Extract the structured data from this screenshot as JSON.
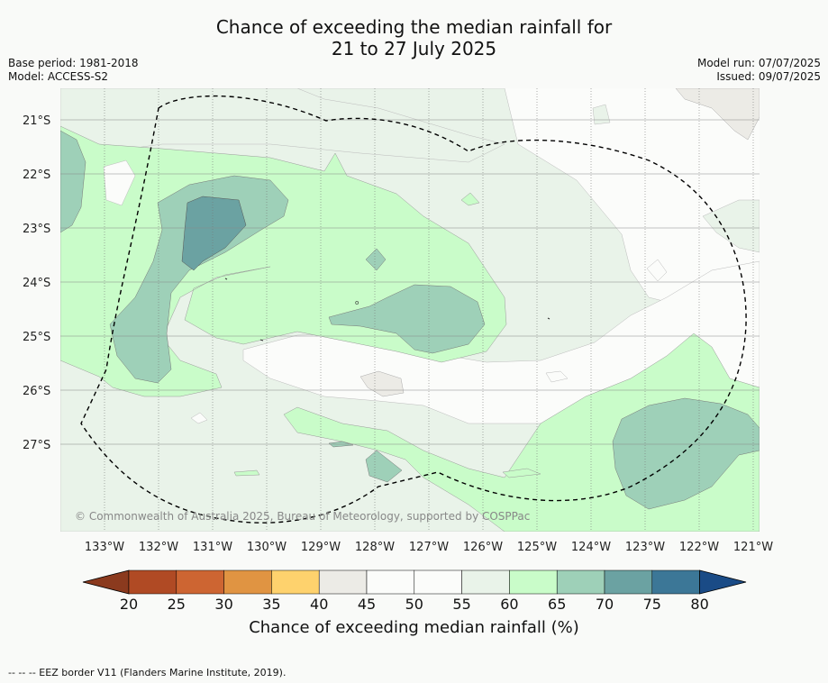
{
  "title_line1": "Chance of exceeding the median rainfall for",
  "title_line2": "21 to 27 July 2025",
  "base_period": "Base period: 1981-2018",
  "model": "Model: ACCESS-S2",
  "model_run": "Model run: 07/07/2025",
  "issued": "Issued: 09/07/2025",
  "copyright": "© Commonwealth of Australia 2025, Bureau of Meteorology, supported by COSPPac",
  "lon_labels": [
    "133°W",
    "132°W",
    "131°W",
    "130°W",
    "129°W",
    "128°W",
    "127°W",
    "126°W",
    "125°W",
    "124°W",
    "123°W",
    "122°W",
    "121°W"
  ],
  "lat_labels": [
    "21°S",
    "22°S",
    "23°S",
    "24°S",
    "25°S",
    "26°S",
    "27°S"
  ],
  "colorbar": {
    "ticks": [
      "20",
      "25",
      "30",
      "35",
      "40",
      "45",
      "50",
      "55",
      "60",
      "65",
      "70",
      "75",
      "80"
    ],
    "colors": [
      "#8b3a1e",
      "#b04a24",
      "#cd6532",
      "#e09442",
      "#fed26d",
      "#ecebe6",
      "#fbfcfa",
      "#fbfcfa",
      "#e9f3e9",
      "#c9fcc9",
      "#9ed0b8",
      "#6ba2a2",
      "#3c7797",
      "#1a4b86"
    ],
    "label": "Chance of exceeding median rainfall (%)"
  },
  "footnote": "--  --  -- EEZ border V11 (Flanders Marine Institute, 2019)."
}
